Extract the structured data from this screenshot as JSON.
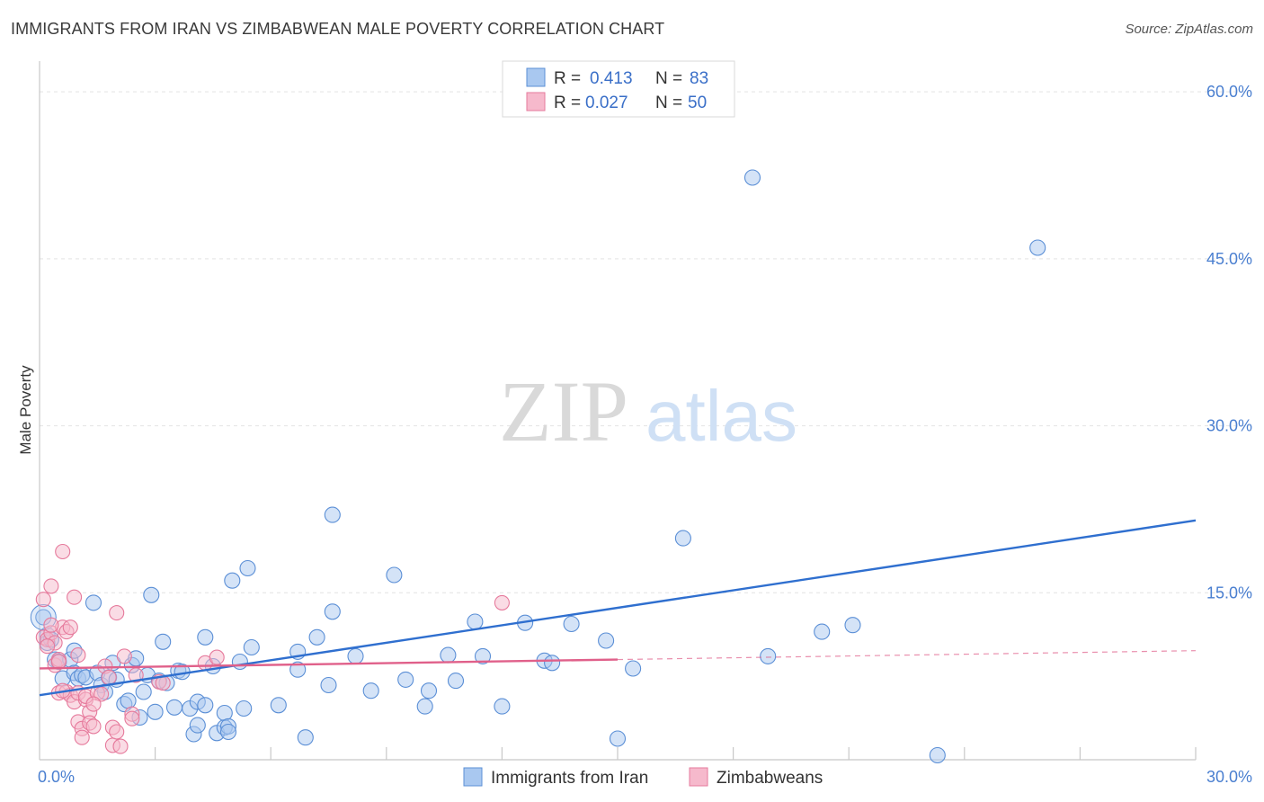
{
  "header": {
    "title": "IMMIGRANTS FROM IRAN VS ZIMBABWEAN MALE POVERTY CORRELATION CHART",
    "source": "Source: ZipAtlas.com"
  },
  "watermark": {
    "zip": "ZIP",
    "atlas": "atlas"
  },
  "colors": {
    "blue_fill": "#a9c8f0",
    "blue_stroke": "#5b8fd6",
    "blue_line": "#2f6fcf",
    "pink_fill": "#f6b9cc",
    "pink_stroke": "#e67a9c",
    "pink_line": "#e0608a",
    "grid": "#e4e4e4",
    "tick_text": "#4a7fd0"
  },
  "legend": {
    "rows": [
      {
        "r_label": "R = ",
        "r_value": "0.413",
        "n_label": "N = ",
        "n_value": "83",
        "series": "blue"
      },
      {
        "r_label": "R = ",
        "r_value": "0.027",
        "n_label": "N = ",
        "n_value": "50",
        "series": "pink"
      }
    ]
  },
  "bottom_legend": [
    {
      "label": "Immigrants from Iran",
      "series": "blue"
    },
    {
      "label": "Zimbabweans",
      "series": "pink"
    }
  ],
  "chart_data": {
    "type": "scatter",
    "title": "IMMIGRANTS FROM IRAN VS ZIMBABWEAN MALE POVERTY CORRELATION CHART",
    "xlabel": "",
    "ylabel": "Male Poverty",
    "xlim": [
      0,
      30
    ],
    "ylim": [
      0,
      63
    ],
    "x_tick_labels": [
      {
        "value": 0,
        "label": "0.0%"
      },
      {
        "value": 30,
        "label": "30.0%"
      }
    ],
    "x_minor_ticks": [
      3,
      6,
      9,
      12,
      15,
      18,
      21,
      24,
      27,
      30
    ],
    "y_ticks": [
      {
        "value": 15,
        "label": "15.0%"
      },
      {
        "value": 30,
        "label": "30.0%"
      },
      {
        "value": 45,
        "label": "45.0%"
      },
      {
        "value": 60,
        "label": "60.0%"
      }
    ],
    "series": [
      {
        "name": "Immigrants from Iran",
        "color": "blue",
        "trend": {
          "x0": 0,
          "y0": 5.8,
          "x1": 30,
          "y1": 21.5
        },
        "points": [
          [
            0.1,
            12.8
          ],
          [
            0.2,
            11.2
          ],
          [
            0.2,
            10.5
          ],
          [
            0.3,
            10.8
          ],
          [
            0.4,
            9.0
          ],
          [
            0.5,
            8.8
          ],
          [
            0.6,
            7.3
          ],
          [
            0.8,
            9.0
          ],
          [
            0.9,
            7.8
          ],
          [
            0.9,
            9.8
          ],
          [
            1.0,
            7.3
          ],
          [
            1.1,
            7.6
          ],
          [
            1.2,
            7.4
          ],
          [
            1.4,
            14.1
          ],
          [
            1.5,
            7.8
          ],
          [
            1.6,
            6.7
          ],
          [
            1.7,
            6.1
          ],
          [
            1.8,
            7.4
          ],
          [
            1.9,
            8.7
          ],
          [
            2.0,
            7.2
          ],
          [
            2.2,
            5.0
          ],
          [
            2.3,
            5.3
          ],
          [
            2.4,
            8.5
          ],
          [
            2.5,
            9.1
          ],
          [
            2.6,
            3.8
          ],
          [
            2.7,
            6.1
          ],
          [
            2.8,
            7.6
          ],
          [
            2.9,
            14.8
          ],
          [
            3.0,
            4.3
          ],
          [
            3.1,
            7.1
          ],
          [
            3.2,
            10.6
          ],
          [
            3.3,
            6.9
          ],
          [
            3.5,
            4.7
          ],
          [
            3.6,
            8.0
          ],
          [
            3.7,
            7.9
          ],
          [
            3.9,
            4.6
          ],
          [
            4.0,
            2.3
          ],
          [
            4.1,
            3.1
          ],
          [
            4.1,
            5.2
          ],
          [
            4.3,
            11.0
          ],
          [
            4.3,
            4.9
          ],
          [
            4.5,
            8.4
          ],
          [
            4.6,
            2.4
          ],
          [
            4.8,
            2.9
          ],
          [
            4.8,
            4.2
          ],
          [
            4.9,
            3.0
          ],
          [
            4.9,
            2.5
          ],
          [
            5.0,
            16.1
          ],
          [
            5.2,
            8.8
          ],
          [
            5.3,
            4.6
          ],
          [
            5.4,
            17.2
          ],
          [
            5.5,
            10.1
          ],
          [
            6.2,
            4.9
          ],
          [
            6.7,
            9.7
          ],
          [
            6.7,
            8.1
          ],
          [
            6.9,
            2.0
          ],
          [
            7.2,
            11.0
          ],
          [
            7.5,
            6.7
          ],
          [
            7.6,
            13.3
          ],
          [
            7.6,
            22.0
          ],
          [
            8.2,
            9.3
          ],
          [
            8.6,
            6.2
          ],
          [
            9.2,
            16.6
          ],
          [
            9.5,
            7.2
          ],
          [
            10.0,
            4.8
          ],
          [
            10.1,
            6.2
          ],
          [
            10.6,
            9.4
          ],
          [
            10.8,
            7.1
          ],
          [
            11.3,
            12.4
          ],
          [
            11.5,
            9.3
          ],
          [
            12.0,
            4.8
          ],
          [
            12.6,
            12.3
          ],
          [
            13.1,
            8.9
          ],
          [
            13.3,
            8.7
          ],
          [
            13.8,
            12.2
          ],
          [
            14.7,
            10.7
          ],
          [
            15.0,
            1.9
          ],
          [
            15.4,
            8.2
          ],
          [
            16.7,
            19.9
          ],
          [
            18.5,
            52.3
          ],
          [
            18.9,
            9.3
          ],
          [
            20.3,
            11.5
          ],
          [
            21.1,
            12.1
          ],
          [
            23.3,
            0.4
          ],
          [
            25.9,
            46.0
          ]
        ]
      },
      {
        "name": "Zimbabweans",
        "color": "pink",
        "trend": {
          "x0": 0,
          "y0": 8.2,
          "x1": 15,
          "y1": 9.0,
          "dash_x1": 30,
          "dash_y1": 9.8
        },
        "points": [
          [
            0.1,
            11.0
          ],
          [
            0.2,
            10.8
          ],
          [
            0.3,
            11.4
          ],
          [
            0.3,
            15.6
          ],
          [
            0.4,
            10.5
          ],
          [
            0.4,
            8.5
          ],
          [
            0.5,
            9.0
          ],
          [
            0.5,
            6.0
          ],
          [
            0.6,
            11.9
          ],
          [
            0.6,
            18.7
          ],
          [
            0.7,
            6.1
          ],
          [
            0.7,
            11.5
          ],
          [
            0.8,
            5.8
          ],
          [
            0.8,
            11.9
          ],
          [
            0.9,
            14.6
          ],
          [
            0.9,
            5.2
          ],
          [
            1.0,
            6.0
          ],
          [
            1.0,
            3.4
          ],
          [
            1.1,
            2.8
          ],
          [
            1.1,
            2.0
          ],
          [
            1.2,
            5.4
          ],
          [
            1.2,
            5.7
          ],
          [
            1.3,
            4.3
          ],
          [
            1.3,
            3.3
          ],
          [
            1.4,
            3.0
          ],
          [
            1.5,
            6.0
          ],
          [
            1.6,
            5.9
          ],
          [
            1.7,
            8.4
          ],
          [
            1.8,
            7.4
          ],
          [
            1.9,
            2.9
          ],
          [
            1.9,
            1.3
          ],
          [
            2.0,
            13.2
          ],
          [
            2.0,
            2.5
          ],
          [
            2.1,
            1.2
          ],
          [
            2.2,
            9.3
          ],
          [
            2.4,
            4.1
          ],
          [
            2.5,
            7.6
          ],
          [
            3.1,
            7.0
          ],
          [
            3.2,
            6.9
          ],
          [
            4.3,
            8.7
          ],
          [
            4.6,
            9.2
          ],
          [
            0.3,
            12.1
          ],
          [
            0.2,
            10.2
          ],
          [
            0.5,
            8.8
          ],
          [
            0.6,
            6.2
          ],
          [
            1.4,
            5.0
          ],
          [
            12.0,
            14.1
          ],
          [
            0.1,
            14.4
          ],
          [
            1.0,
            9.4
          ],
          [
            2.4,
            3.7
          ]
        ]
      }
    ]
  }
}
